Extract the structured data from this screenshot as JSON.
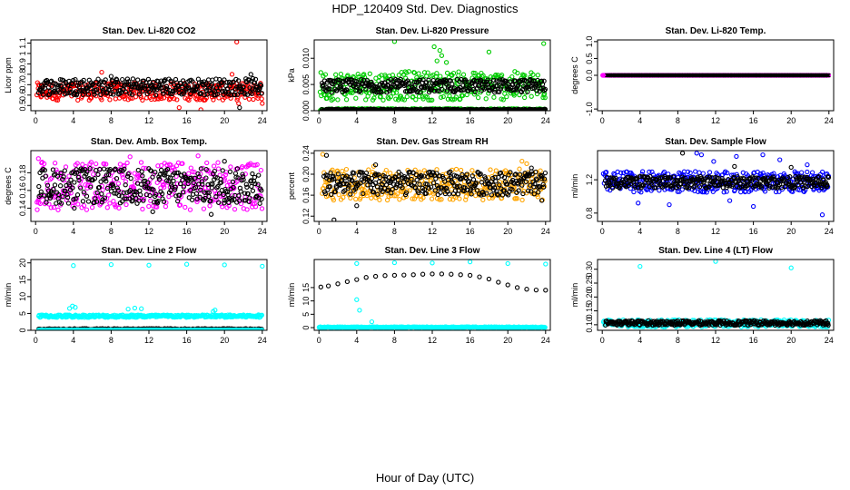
{
  "figure": {
    "title": "HDP_120409  Std. Dev. Diagnostics",
    "xlabel": "Hour of Day (UTC)"
  },
  "chart_data": [
    {
      "type": "scatter",
      "title": "Stan. Dev. Li-820 CO2",
      "ylabel": "Licor ppm",
      "xlim": [
        -0.5,
        24.5
      ],
      "ylim": [
        0.45,
        1.13
      ],
      "xticks": [
        "0",
        "4",
        "8",
        "12",
        "16",
        "20",
        "24"
      ],
      "yticks": [
        "0.5",
        "0.6",
        "0.7",
        "0.8",
        "0.9",
        "1",
        "1.1"
      ],
      "series": [
        {
          "color": "#ff0000",
          "marker": "circle",
          "band": {
            "x": [
              0.1,
              24.0
            ],
            "y": [
              0.55,
              0.72
            ]
          },
          "points": [
            [
              21.3,
              1.11
            ],
            [
              21.5,
              0.52
            ],
            [
              20.8,
              0.8
            ],
            [
              7.0,
              0.82
            ],
            [
              15.2,
              0.48
            ],
            [
              17.5,
              0.46
            ],
            [
              24.0,
              0.52
            ]
          ]
        },
        {
          "color": "#000000",
          "marker": "circle",
          "band": {
            "x": [
              0.3,
              24.0
            ],
            "y": [
              0.6,
              0.76
            ]
          },
          "points": [
            [
              21.6,
              0.48
            ],
            [
              22.8,
              0.8
            ],
            [
              4.2,
              0.75
            ],
            [
              8.0,
              0.78
            ]
          ]
        }
      ]
    },
    {
      "type": "scatter",
      "title": "Stan. Dev. Li-820 Pressure",
      "ylabel": "kPa",
      "xlim": [
        -0.5,
        24.5
      ],
      "ylim": [
        0.0,
        0.0135
      ],
      "xticks": [
        "0",
        "4",
        "8",
        "12",
        "16",
        "20",
        "24"
      ],
      "yticks": [
        "0.000",
        "0.005",
        "0.010"
      ],
      "series": [
        {
          "color": "#00cc00",
          "marker": "circle",
          "band": {
            "x": [
              0.1,
              24.0
            ],
            "y": [
              0.002,
              0.0075
            ]
          },
          "points": [
            [
              8.0,
              0.0132
            ],
            [
              23.8,
              0.0128
            ],
            [
              12.2,
              0.0122
            ],
            [
              12.8,
              0.0115
            ],
            [
              13.0,
              0.0105
            ],
            [
              18.0,
              0.0112
            ],
            [
              12.5,
              0.0095
            ],
            [
              13.5,
              0.0092
            ]
          ]
        },
        {
          "color": "#00cc00",
          "marker": "circle",
          "band": {
            "x": [
              0.1,
              24.0
            ],
            "y": [
              0.0,
              0.0004
            ]
          },
          "points": []
        },
        {
          "color": "#000000",
          "marker": "circle",
          "band": {
            "x": [
              0.3,
              24.0
            ],
            "y": [
              0.0035,
              0.006
            ]
          },
          "points": []
        },
        {
          "color": "#000000",
          "marker": "circle",
          "band": {
            "x": [
              0.3,
              24.0
            ],
            "y": [
              0.0,
              0.0003
            ]
          },
          "points": []
        }
      ]
    },
    {
      "type": "scatter",
      "title": "Stan. Dev. Li-820 Temp.",
      "ylabel": "degrees C",
      "xlim": [
        -0.5,
        24.5
      ],
      "ylim": [
        -1.05,
        1.05
      ],
      "xticks": [
        "0",
        "4",
        "8",
        "12",
        "16",
        "20",
        "24"
      ],
      "yticks": [
        "-1.0",
        "0.0",
        "0.5",
        "1.0"
      ],
      "series": [
        {
          "color": "#ff00ff",
          "marker": "circle",
          "band": {
            "x": [
              0.0,
              24.0
            ],
            "y": [
              0.0,
              0.0
            ]
          },
          "points": []
        },
        {
          "color": "#000000",
          "marker": "x",
          "band": {
            "x": [
              0.5,
              24.0
            ],
            "y": [
              0.0,
              0.0
            ]
          },
          "points": []
        }
      ]
    },
    {
      "type": "scatter",
      "title": "Stan. Dev. Amb. Box Temp.",
      "ylabel": "degrees C",
      "xlim": [
        -0.5,
        24.5
      ],
      "ylim": [
        0.125,
        0.205
      ],
      "xticks": [
        "0",
        "4",
        "8",
        "12",
        "16",
        "20",
        "24"
      ],
      "yticks": [
        "0.14",
        "0.16",
        "0.18"
      ],
      "series": [
        {
          "color": "#ff00ff",
          "marker": "circle",
          "band": {
            "x": [
              0.1,
              24.0
            ],
            "y": [
              0.138,
              0.192
            ]
          },
          "points": [
            [
              10.0,
              0.198
            ],
            [
              0.3,
              0.196
            ],
            [
              17.2,
              0.199
            ]
          ]
        },
        {
          "color": "#000000",
          "marker": "circle",
          "band": {
            "x": [
              0.3,
              24.0
            ],
            "y": [
              0.145,
              0.185
            ]
          },
          "points": [
            [
              18.6,
              0.133
            ],
            [
              20.0,
              0.193
            ],
            [
              12.4,
              0.136
            ],
            [
              4.1,
              0.14
            ]
          ]
        }
      ]
    },
    {
      "type": "scatter",
      "title": "Stan. Dev. Gas Stream RH",
      "ylabel": "percent",
      "xlim": [
        -0.5,
        24.5
      ],
      "ylim": [
        0.11,
        0.245
      ],
      "xticks": [
        "0",
        "4",
        "8",
        "12",
        "16",
        "20",
        "24"
      ],
      "yticks": [
        "0.12",
        "0.16",
        "0.20",
        "0.24"
      ],
      "series": [
        {
          "color": "#ffa500",
          "marker": "circle",
          "band": {
            "x": [
              0.3,
              24.0
            ],
            "y": [
              0.15,
              0.21
            ]
          },
          "points": [
            [
              0.4,
              0.238
            ],
            [
              5.8,
              0.215
            ],
            [
              21.5,
              0.225
            ],
            [
              22.0,
              0.22
            ]
          ]
        },
        {
          "color": "#000000",
          "marker": "circle",
          "band": {
            "x": [
              0.5,
              24.0
            ],
            "y": [
              0.16,
              0.205
            ]
          },
          "points": [
            [
              0.8,
              0.236
            ],
            [
              1.6,
              0.113
            ],
            [
              6.0,
              0.218
            ],
            [
              4.0,
              0.14
            ],
            [
              22.5,
              0.212
            ],
            [
              23.6,
              0.15
            ]
          ]
        }
      ]
    },
    {
      "type": "scatter",
      "title": "Stan. Dev. Sample Flow",
      "ylabel": "ml/min",
      "xlim": [
        -0.5,
        24.5
      ],
      "ylim": [
        0.7,
        1.55
      ],
      "xticks": [
        "0",
        "4",
        "8",
        "12",
        "16",
        "20",
        "24"
      ],
      "yticks": [
        "0.8",
        "1.2"
      ],
      "series": [
        {
          "color": "#0000ff",
          "marker": "circle",
          "band": {
            "x": [
              0.1,
              24.0
            ],
            "y": [
              1.05,
              1.3
            ]
          },
          "points": [
            [
              10.0,
              1.52
            ],
            [
              10.5,
              1.5
            ],
            [
              11.8,
              1.42
            ],
            [
              14.2,
              1.48
            ],
            [
              17.0,
              1.5
            ],
            [
              18.8,
              1.44
            ],
            [
              21.7,
              1.38
            ],
            [
              23.3,
              0.78
            ],
            [
              7.1,
              0.9
            ],
            [
              3.8,
              0.92
            ],
            [
              13.5,
              0.95
            ],
            [
              16.0,
              0.88
            ]
          ]
        },
        {
          "color": "#000000",
          "marker": "circle",
          "band": {
            "x": [
              0.3,
              24.0
            ],
            "y": [
              1.1,
              1.24
            ]
          },
          "points": [
            [
              8.5,
              1.52
            ],
            [
              14.0,
              1.36
            ],
            [
              20.0,
              1.35
            ],
            [
              23.8,
              1.14
            ]
          ]
        }
      ]
    },
    {
      "type": "scatter",
      "title": "Stan. Dev. Line 2 Flow",
      "ylabel": "ml/min",
      "xlim": [
        -0.5,
        24.5
      ],
      "ylim": [
        0.0,
        21
      ],
      "xticks": [
        "0",
        "4",
        "8",
        "12",
        "16",
        "20",
        "24"
      ],
      "yticks": [
        "0",
        "5",
        "10",
        "15",
        "20"
      ],
      "series": [
        {
          "color": "#00ffff",
          "marker": "circle",
          "points": [
            [
              4.0,
              19.2
            ],
            [
              8.0,
              19.5
            ],
            [
              12.0,
              19.3
            ],
            [
              16.0,
              19.6
            ],
            [
              20.0,
              19.4
            ],
            [
              24.0,
              19.0
            ]
          ]
        },
        {
          "color": "#00ffff",
          "marker": "circle",
          "band": {
            "x": [
              0.3,
              24.0
            ],
            "y": [
              3.8,
              4.6
            ]
          },
          "points": [
            [
              3.6,
              6.5
            ],
            [
              3.9,
              7.2
            ],
            [
              4.2,
              6.8
            ],
            [
              9.8,
              6.3
            ],
            [
              10.5,
              6.6
            ],
            [
              11.2,
              6.4
            ],
            [
              18.8,
              5.6
            ],
            [
              19.0,
              6.0
            ]
          ]
        },
        {
          "color": "#000000",
          "marker": "circle",
          "band": {
            "x": [
              0.3,
              24.0
            ],
            "y": [
              0.1,
              0.5
            ]
          },
          "points": []
        },
        {
          "color": "#00ffff",
          "marker": "circle",
          "band": {
            "x": [
              0.3,
              24.0
            ],
            "y": [
              0.0,
              0.1
            ]
          },
          "points": []
        }
      ]
    },
    {
      "type": "scatter",
      "title": "Stan. Dev. Line 3 Flow",
      "ylabel": "ml/min",
      "xlim": [
        -0.5,
        24.5
      ],
      "ylim": [
        -1.0,
        25.5
      ],
      "xticks": [
        "0",
        "4",
        "8",
        "12",
        "16",
        "20",
        "24"
      ],
      "yticks": [
        "0",
        "5",
        "10",
        "15"
      ],
      "series": [
        {
          "color": "#000000",
          "marker": "circle",
          "points": [
            [
              0.2,
              15.2
            ],
            [
              1,
              15.6
            ],
            [
              2,
              16.4
            ],
            [
              3,
              17.2
            ],
            [
              4,
              18.0
            ],
            [
              5,
              18.8
            ],
            [
              6,
              19.2
            ],
            [
              7,
              19.5
            ],
            [
              8,
              19.6
            ],
            [
              9,
              19.7
            ],
            [
              10,
              19.8
            ],
            [
              11,
              20.0
            ],
            [
              12,
              20.1
            ],
            [
              13,
              20.1
            ],
            [
              14,
              20.0
            ],
            [
              15,
              19.8
            ],
            [
              16,
              19.6
            ],
            [
              17,
              19.0
            ],
            [
              18,
              18.2
            ],
            [
              19,
              17.0
            ],
            [
              20,
              16.0
            ],
            [
              21,
              15.0
            ],
            [
              22,
              14.4
            ],
            [
              23,
              14.1
            ],
            [
              24,
              14.0
            ]
          ]
        },
        {
          "color": "#00ffff",
          "marker": "circle",
          "points": [
            [
              4.0,
              24.0
            ],
            [
              8.0,
              24.3
            ],
            [
              12.0,
              24.2
            ],
            [
              16.0,
              24.6
            ],
            [
              20.0,
              24.0
            ],
            [
              24.0,
              23.8
            ],
            [
              4.3,
              6.5
            ],
            [
              5.6,
              2.2
            ],
            [
              4.0,
              10.5
            ]
          ]
        },
        {
          "color": "#00ffff",
          "marker": "circle",
          "band": {
            "x": [
              0.0,
              24.0
            ],
            "y": [
              0.0,
              0.3
            ]
          },
          "points": []
        }
      ]
    },
    {
      "type": "scatter",
      "title": "Stan. Dev. Line 4 (LT) Flow",
      "ylabel": "ml/min",
      "xlim": [
        -0.5,
        24.5
      ],
      "ylim": [
        0.08,
        0.335
      ],
      "xticks": [
        "0",
        "4",
        "8",
        "12",
        "16",
        "20",
        "24"
      ],
      "yticks": [
        "0.10",
        "0.15",
        "0.20",
        "0.25",
        "0.30"
      ],
      "series": [
        {
          "color": "#00ffff",
          "marker": "circle",
          "band": {
            "x": [
              0.1,
              24.0
            ],
            "y": [
              0.092,
              0.118
            ]
          },
          "points": [
            [
              4.0,
              0.31
            ],
            [
              12.0,
              0.328
            ],
            [
              20.0,
              0.305
            ]
          ]
        },
        {
          "color": "#000000",
          "marker": "circle",
          "band": {
            "x": [
              0.3,
              24.0
            ],
            "y": [
              0.098,
              0.115
            ]
          },
          "points": []
        }
      ]
    }
  ]
}
